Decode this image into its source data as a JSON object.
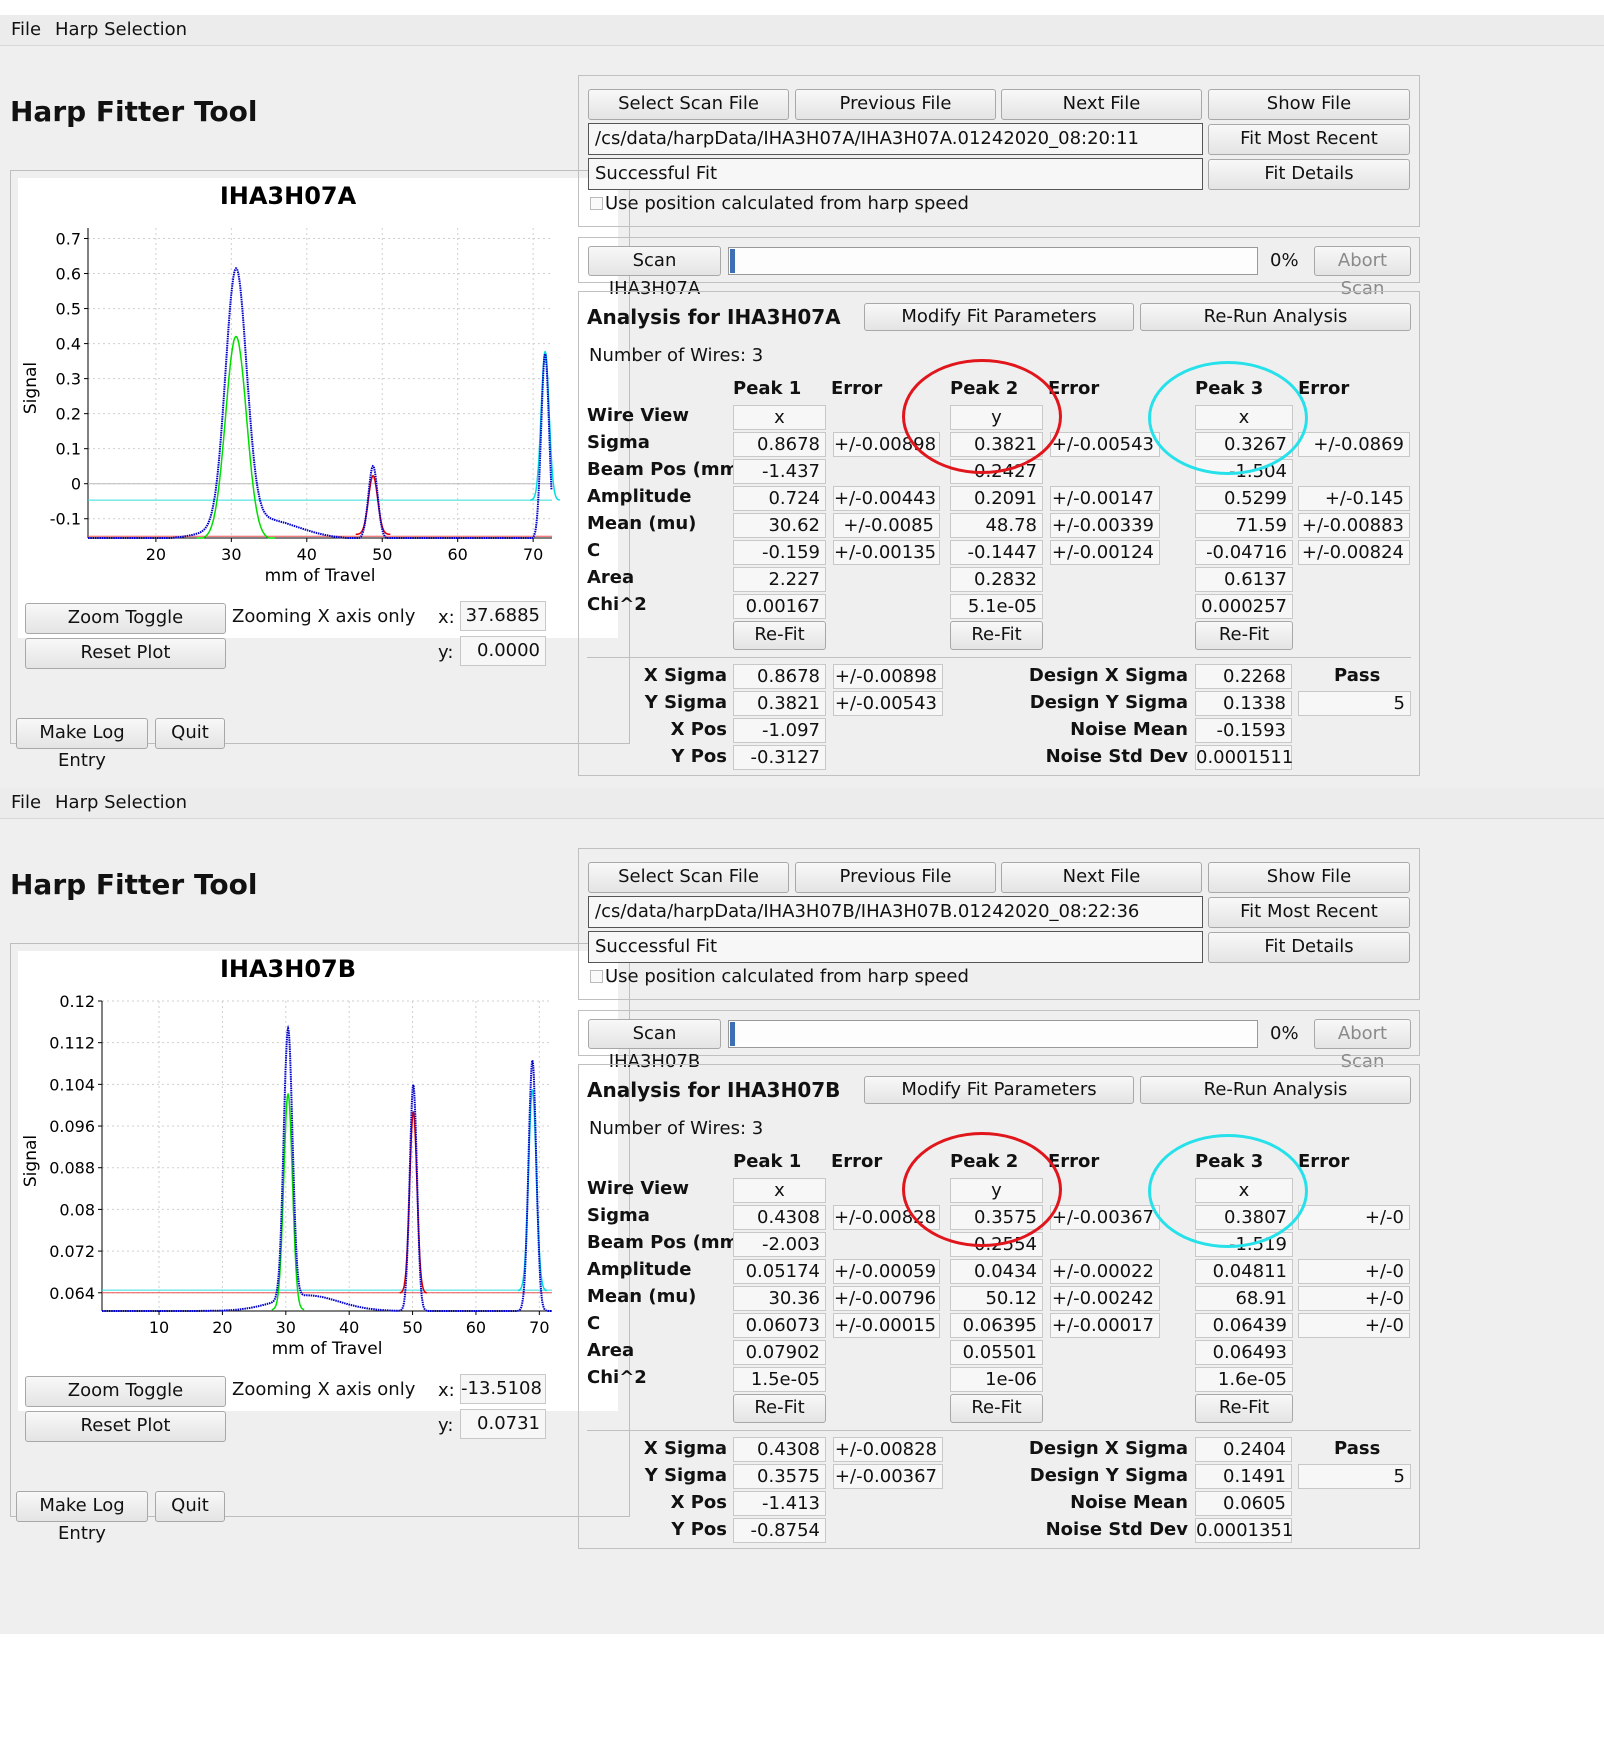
{
  "panels": [
    {
      "menu": [
        "File",
        "Harp Selection"
      ],
      "app_title": "Harp Fitter Tool",
      "buttons": {
        "select_scan_file": "Select Scan File",
        "previous_file": "Previous File",
        "next_file": "Next File",
        "show_file": "Show File",
        "fit_most_recent": "Fit Most Recent",
        "fit_details": "Fit Details",
        "scan": "Scan IHA3H07A",
        "abort_scan": "Abort Scan",
        "modify_fit_parameters": "Modify Fit Parameters",
        "rerun_analysis": "Re-Run Analysis",
        "zoom_toggle": "Zoom Toggle",
        "reset_plot": "Reset Plot",
        "make_log_entry": "Make Log Entry",
        "quit": "Quit",
        "refit": "Re-Fit"
      },
      "file_path": "/cs/data/harpData/IHA3H07A/IHA3H07A.01242020_08:20:11",
      "status": "Successful Fit",
      "use_position_label": "Use position calculated from harp speed",
      "progress_text": "0%",
      "progress": 0,
      "analysis_title": "Analysis for IHA3H07A",
      "num_wires_label": "Number of Wires: 3",
      "zoom_mode": "Zooming X axis only",
      "cursor": {
        "x_label": "x:",
        "x": "37.6885",
        "y_label": "y:",
        "y": "0.0000"
      },
      "table": {
        "headers": [
          "Peak 1",
          "Error",
          "Peak 2",
          "Error",
          "Peak 3",
          "Error"
        ],
        "row_labels": [
          "Wire View",
          "Sigma",
          "Beam Pos (mm)",
          "Amplitude",
          "Mean (mu)",
          "C",
          "Area",
          "Chi^2"
        ],
        "wire_view": [
          "x",
          "y",
          "x"
        ],
        "sigma": [
          "0.8678",
          "+/-0.00898",
          "0.3821",
          "+/-0.00543",
          "0.3267",
          "+/-0.0869"
        ],
        "beam_pos": [
          "-1.437",
          "-0.2427",
          "-1.504"
        ],
        "amplitude": [
          "0.724",
          "+/-0.00443",
          "0.2091",
          "+/-0.00147",
          "0.5299",
          "+/-0.145"
        ],
        "mean": [
          "30.62",
          "+/-0.0085",
          "48.78",
          "+/-0.00339",
          "71.59",
          "+/-0.00883"
        ],
        "c": [
          "-0.159",
          "+/-0.00135",
          "-0.1447",
          "+/-0.00124",
          "-0.04716",
          "+/-0.00824"
        ],
        "area": [
          "2.227",
          "0.2832",
          "0.6137"
        ],
        "chi2": [
          "0.00167",
          "5.1e-05",
          "0.000257"
        ]
      },
      "summary": {
        "x_sigma_label": "X Sigma",
        "x_sigma": "0.8678",
        "x_sigma_err": "+/-0.00898",
        "y_sigma_label": "Y Sigma",
        "y_sigma": "0.3821",
        "y_sigma_err": "+/-0.00543",
        "x_pos_label": "X Pos",
        "x_pos": "-1.097",
        "y_pos_label": "Y Pos",
        "y_pos": "-0.3127",
        "design_x_sigma_label": "Design X Sigma",
        "design_x_sigma": "0.2268",
        "design_y_sigma_label": "Design Y Sigma",
        "design_y_sigma": "0.1338",
        "noise_mean_label": "Noise Mean",
        "noise_mean": "-0.1593",
        "noise_std_label": "Noise Std Dev",
        "noise_std": "0.0001511",
        "pass_label": "Pass",
        "pass_value": "5"
      },
      "annotation_colors": [
        "#e0161c",
        "#27e1ea"
      ]
    },
    {
      "menu": [
        "File",
        "Harp Selection"
      ],
      "app_title": "Harp Fitter Tool",
      "buttons": {
        "select_scan_file": "Select Scan File",
        "previous_file": "Previous File",
        "next_file": "Next File",
        "show_file": "Show File",
        "fit_most_recent": "Fit Most Recent",
        "fit_details": "Fit Details",
        "scan": "Scan IHA3H07B",
        "abort_scan": "Abort Scan",
        "modify_fit_parameters": "Modify Fit Parameters",
        "rerun_analysis": "Re-Run Analysis",
        "zoom_toggle": "Zoom Toggle",
        "reset_plot": "Reset Plot",
        "make_log_entry": "Make Log Entry",
        "quit": "Quit",
        "refit": "Re-Fit"
      },
      "file_path": "/cs/data/harpData/IHA3H07B/IHA3H07B.01242020_08:22:36",
      "status": "Successful Fit",
      "use_position_label": "Use position calculated from harp speed",
      "progress_text": "0%",
      "progress": 0,
      "analysis_title": "Analysis for IHA3H07B",
      "num_wires_label": "Number of Wires: 3",
      "zoom_mode": "Zooming X axis only",
      "cursor": {
        "x_label": "x:",
        "x": "-13.5108",
        "y_label": "y:",
        "y": "0.0731"
      },
      "table": {
        "headers": [
          "Peak 1",
          "Error",
          "Peak 2",
          "Error",
          "Peak 3",
          "Error"
        ],
        "row_labels": [
          "Wire View",
          "Sigma",
          "Beam Pos (mm)",
          "Amplitude",
          "Mean (mu)",
          "C",
          "Area",
          "Chi^2"
        ],
        "wire_view": [
          "x",
          "y",
          "x"
        ],
        "sigma": [
          "0.4308",
          "+/-0.00828",
          "0.3575",
          "+/-0.00367",
          "0.3807",
          "+/-0"
        ],
        "beam_pos": [
          "-2.003",
          "-0.2554",
          "-1.519"
        ],
        "amplitude": [
          "0.05174",
          "+/-0.00059",
          "0.0434",
          "+/-0.00022",
          "0.04811",
          "+/-0"
        ],
        "mean": [
          "30.36",
          "+/-0.00796",
          "50.12",
          "+/-0.00242",
          "68.91",
          "+/-0"
        ],
        "c": [
          "0.06073",
          "+/-0.00015",
          "0.06395",
          "+/-0.00017",
          "0.06439",
          "+/-0"
        ],
        "area": [
          "0.07902",
          "0.05501",
          "0.06493"
        ],
        "chi2": [
          "1.5e-05",
          "1e-06",
          "1.6e-05"
        ]
      },
      "summary": {
        "x_sigma_label": "X Sigma",
        "x_sigma": "0.4308",
        "x_sigma_err": "+/-0.00828",
        "y_sigma_label": "Y Sigma",
        "y_sigma": "0.3575",
        "y_sigma_err": "+/-0.00367",
        "x_pos_label": "X Pos",
        "x_pos": "-1.413",
        "y_pos_label": "Y Pos",
        "y_pos": "-0.8754",
        "design_x_sigma_label": "Design X Sigma",
        "design_x_sigma": "0.2404",
        "design_y_sigma_label": "Design Y Sigma",
        "design_y_sigma": "0.1491",
        "noise_mean_label": "Noise Mean",
        "noise_mean": "0.0605",
        "noise_std_label": "Noise Std Dev",
        "noise_std": "0.0001351",
        "pass_label": "Pass",
        "pass_value": "5"
      },
      "annotation_colors": [
        "#e0161c",
        "#27e1ea"
      ]
    }
  ],
  "chart_data": [
    {
      "type": "line",
      "title": "IHA3H07A",
      "xlabel": "mm of Travel",
      "ylabel": "Signal",
      "xlim": [
        11,
        72.5
      ],
      "ylim": [
        -0.155,
        0.73
      ],
      "xticks": [
        20,
        30,
        40,
        50,
        60,
        70
      ],
      "yticks": [
        -0.1,
        0,
        0.1,
        0.2,
        0.3,
        0.4,
        0.5,
        0.6,
        0.7
      ],
      "ytick_labels": [
        "-0.1",
        "0",
        "0.1",
        "0.2",
        "0.3",
        "0.4",
        "0.5",
        "0.6",
        "0.7"
      ],
      "grid": true,
      "baseline": -0.159,
      "threshold_cyan": -0.047,
      "threshold_red": -0.15,
      "peaks": [
        {
          "mean": 30.62,
          "sigma": 0.8678,
          "amplitude": 0.724,
          "c": -0.159,
          "fit_color": "#00dd00"
        },
        {
          "mean": 48.78,
          "sigma": 0.3821,
          "amplitude": 0.2091,
          "c": -0.1447,
          "fit_color": "#dd0000"
        },
        {
          "mean": 71.59,
          "sigma": 0.3267,
          "amplitude": 0.5299,
          "c": -0.04716,
          "fit_color": "#00dddd"
        }
      ],
      "data_color": "#0000cc"
    },
    {
      "type": "line",
      "title": "IHA3H07B",
      "xlabel": "mm of Travel",
      "ylabel": "Signal",
      "xlim": [
        1,
        72
      ],
      "ylim": [
        0.0605,
        0.12
      ],
      "xticks": [
        10,
        20,
        30,
        40,
        50,
        60,
        70
      ],
      "yticks": [
        0.064,
        0.072,
        0.08,
        0.088,
        0.096,
        0.104,
        0.112,
        0.12
      ],
      "ytick_labels": [
        "0.064",
        "0.072",
        "0.08",
        "0.088",
        "0.096",
        "0.104",
        "0.112",
        "0.12"
      ],
      "grid": true,
      "baseline": 0.0605,
      "threshold_cyan": 0.0645,
      "threshold_red": 0.064,
      "peaks": [
        {
          "mean": 30.36,
          "sigma": 0.4308,
          "amplitude": 0.05174,
          "c": 0.06073,
          "fit_color": "#00dd00"
        },
        {
          "mean": 50.12,
          "sigma": 0.3575,
          "amplitude": 0.0434,
          "c": 0.06395,
          "fit_color": "#dd0000"
        },
        {
          "mean": 68.91,
          "sigma": 0.3807,
          "amplitude": 0.04811,
          "c": 0.06439,
          "fit_color": "#00dddd"
        }
      ],
      "data_color": "#0000cc"
    }
  ]
}
